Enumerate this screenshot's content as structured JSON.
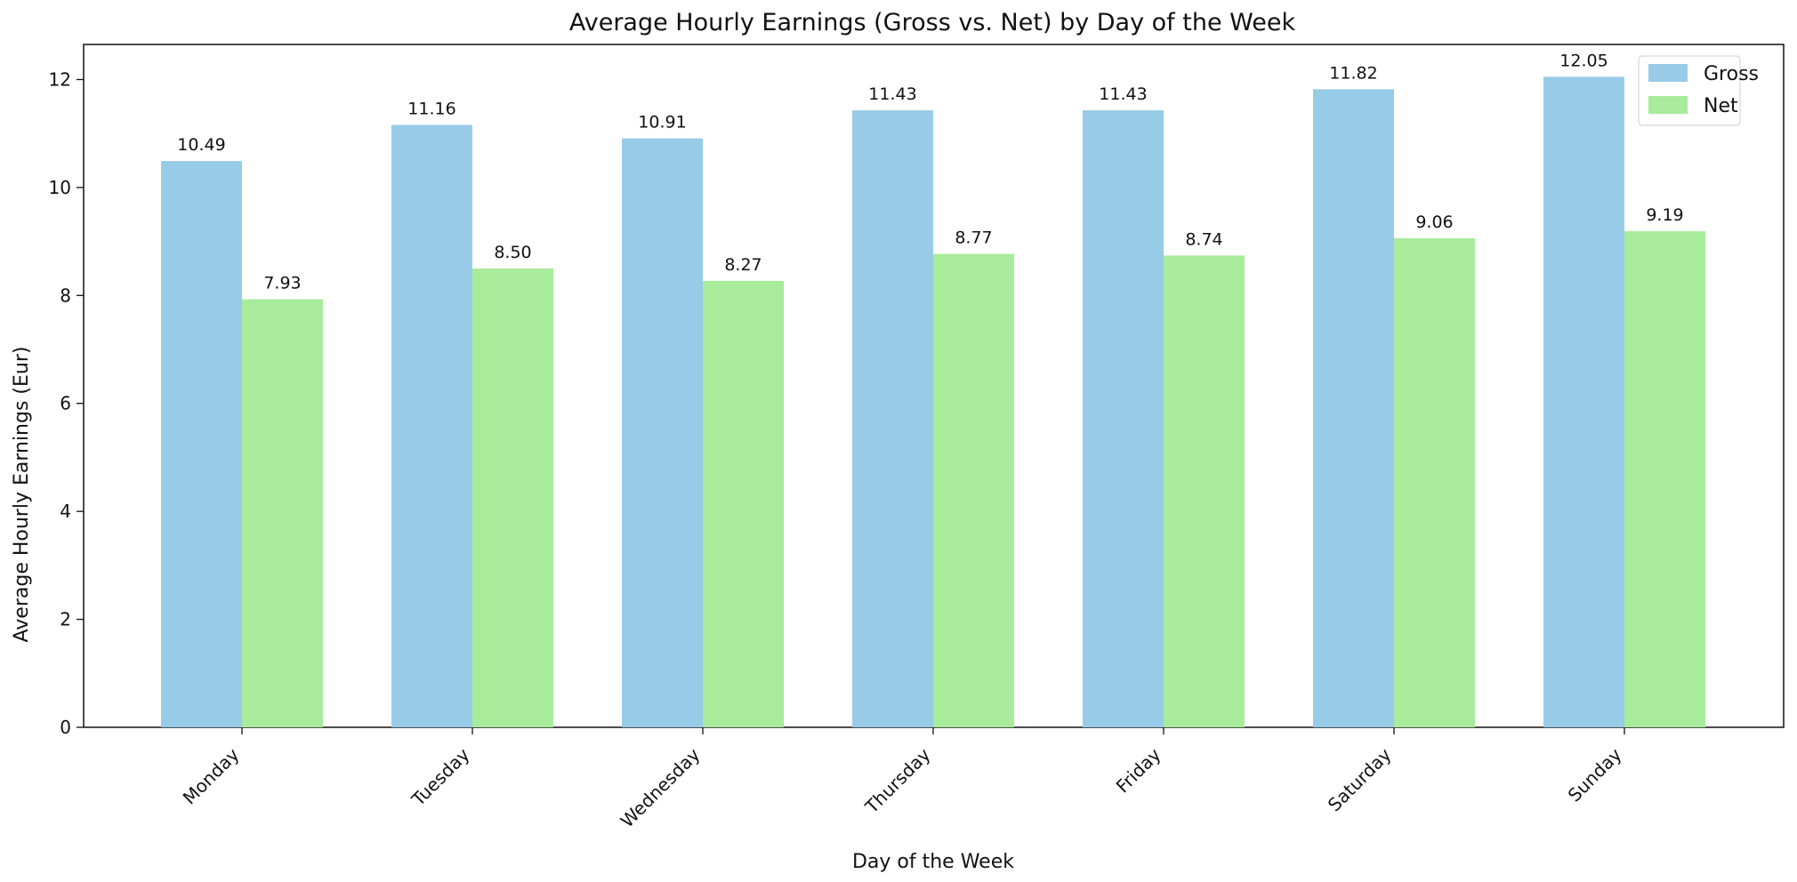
{
  "chart_data": {
    "type": "bar",
    "title": "Average Hourly Earnings (Gross vs. Net) by Day of the Week",
    "xlabel": "Day of the Week",
    "ylabel": "Average Hourly Earnings (Eur)",
    "categories": [
      "Monday",
      "Tuesday",
      "Wednesday",
      "Thursday",
      "Friday",
      "Saturday",
      "Sunday"
    ],
    "series": [
      {
        "name": "Gross",
        "color": "#97cbe7",
        "values": [
          10.49,
          11.16,
          10.91,
          11.43,
          11.43,
          11.82,
          12.05
        ],
        "labels": [
          "10.49",
          "11.16",
          "10.91",
          "11.43",
          "11.43",
          "11.82",
          "12.05"
        ]
      },
      {
        "name": "Net",
        "color": "#a8eb9b",
        "values": [
          7.93,
          8.5,
          8.27,
          8.77,
          8.74,
          9.06,
          9.19
        ],
        "labels": [
          "7.93",
          "8.50",
          "8.27",
          "8.77",
          "8.74",
          "9.06",
          "9.19"
        ]
      }
    ],
    "ylim": [
      0,
      12.65
    ],
    "yticks": [
      "0",
      "2",
      "4",
      "6",
      "8",
      "10",
      "12"
    ],
    "grid": false,
    "legend_position": "top-right"
  }
}
